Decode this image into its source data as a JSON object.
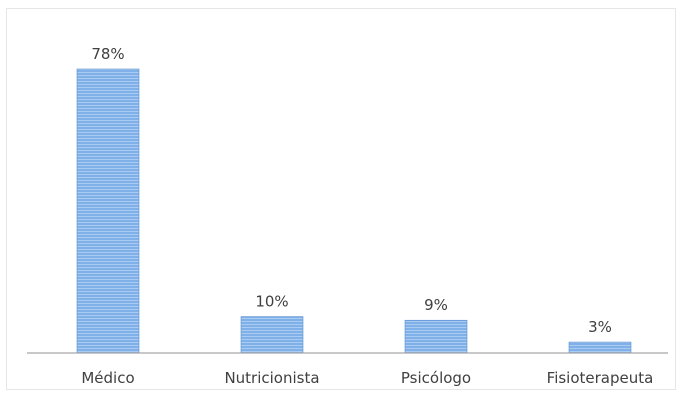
{
  "chart_data": {
    "type": "bar",
    "categories": [
      "Médico",
      "Nutricionista",
      "Psicólogo",
      "Fisioterapeuta"
    ],
    "values": [
      78,
      10,
      9,
      3
    ],
    "data_labels": [
      "78%",
      "10%",
      "9%",
      "3%"
    ],
    "unit": "%",
    "ylim": [
      0,
      78
    ],
    "grid": false,
    "legend": "none",
    "colors": {
      "bar_fill": "#7fb0e8",
      "bar_stripe": "#a9cbf2",
      "bar_edge": "#5b8fd0",
      "axis": "#a6a6a6",
      "text": "#404040"
    }
  }
}
